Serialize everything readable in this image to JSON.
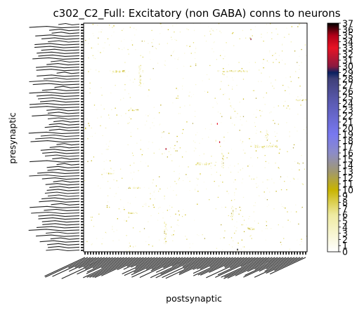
{
  "chart_data": {
    "type": "heatmap",
    "title": "c302_C2_Full: Excitatory (non GABA) conns to neurons",
    "xlabel": "postsynaptic",
    "ylabel": "presynaptic",
    "grid": false,
    "row_tick_count": 80,
    "col_tick_count": 80,
    "row_tick_labels_legible": false,
    "col_tick_labels_legible": false,
    "colorbar": {
      "min": 0,
      "max": 37,
      "ticks": [
        0,
        1,
        2,
        3,
        4,
        5,
        6,
        7,
        8,
        9,
        10,
        11,
        12,
        13,
        14,
        15,
        16,
        17,
        18,
        19,
        20,
        21,
        22,
        23,
        24,
        25,
        26,
        27,
        28,
        29,
        30,
        31,
        32,
        33,
        34,
        35,
        36,
        37
      ],
      "colormap": "gist_stern_r",
      "color_stops": [
        {
          "value": 0,
          "color": "#ffffff"
        },
        {
          "value": 6,
          "color": "#eeeaa0"
        },
        {
          "value": 10,
          "color": "#c8b400"
        },
        {
          "value": 13,
          "color": "#a09870"
        },
        {
          "value": 16,
          "color": "#8c8cc8"
        },
        {
          "value": 19,
          "color": "#7878f0"
        },
        {
          "value": 24,
          "color": "#5c5cb4"
        },
        {
          "value": 28,
          "color": "#404078"
        },
        {
          "value": 29,
          "color": "#0a2060"
        },
        {
          "value": 30,
          "color": "#8a1a40"
        },
        {
          "value": 33,
          "color": "#e81424"
        },
        {
          "value": 35,
          "color": "#b00018"
        },
        {
          "value": 37,
          "color": "#000000"
        }
      ]
    },
    "notable_cells": [
      {
        "row": 0.99,
        "col": 0.69,
        "value": 37
      },
      {
        "row": 0.55,
        "col": 0.37,
        "value": 35
      },
      {
        "row": 0.52,
        "col": 0.61,
        "value": 34
      },
      {
        "row": 0.44,
        "col": 0.6,
        "value": 33
      },
      {
        "row": 0.07,
        "col": 0.75,
        "value": 30
      }
    ]
  }
}
